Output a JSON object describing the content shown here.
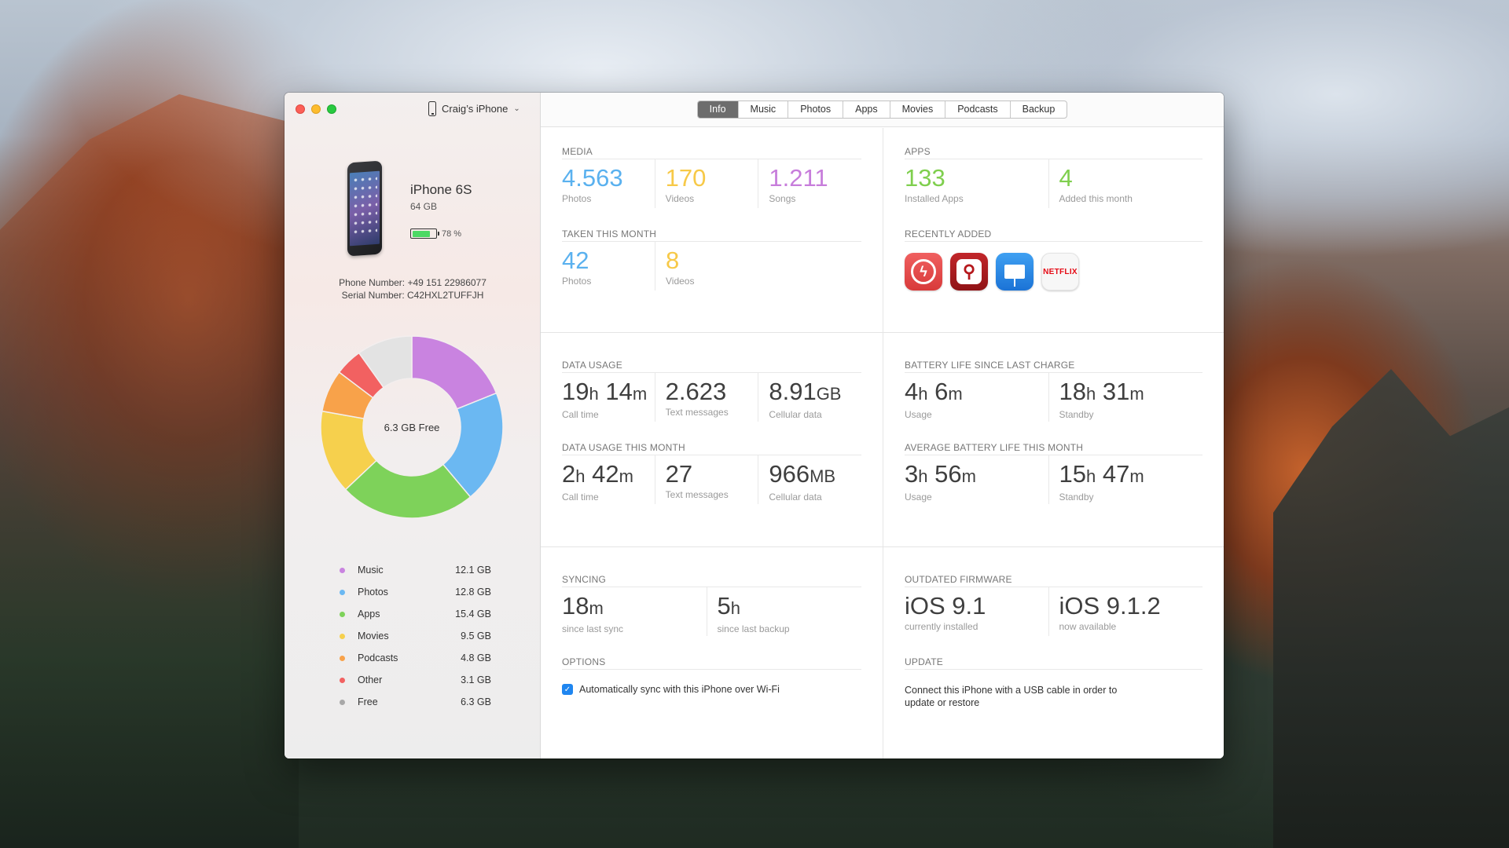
{
  "device_picker": {
    "name": "Craig’s iPhone"
  },
  "device": {
    "model": "iPhone 6S",
    "capacity": "64 GB",
    "battery_pct": "78 %",
    "battery_level": 0.78,
    "phone_number": "Phone Number: +49 151 22986077",
    "serial_number": "Serial Number: C42HXL2TUFFJH"
  },
  "storage": {
    "center_label": "6.3 GB Free",
    "segments": [
      {
        "name": "Music",
        "size": "12.1 GB",
        "value": 12.1,
        "color": "#c983e0"
      },
      {
        "name": "Photos",
        "size": "12.8 GB",
        "value": 12.8,
        "color": "#6bb8f2"
      },
      {
        "name": "Apps",
        "size": "15.4 GB",
        "value": 15.4,
        "color": "#7ed25a"
      },
      {
        "name": "Movies",
        "size": "9.5 GB",
        "value": 9.5,
        "color": "#f6d04d"
      },
      {
        "name": "Podcasts",
        "size": "4.8 GB",
        "value": 4.8,
        "color": "#f8a24a"
      },
      {
        "name": "Other",
        "size": "3.1 GB",
        "value": 3.1,
        "color": "#f26161"
      },
      {
        "name": "Free",
        "size": "6.3 GB",
        "value": 6.3,
        "color": "#e3e3e3"
      }
    ]
  },
  "tabs": [
    "Info",
    "Music",
    "Photos",
    "Apps",
    "Movies",
    "Podcasts",
    "Backup"
  ],
  "active_tab": "Info",
  "media": {
    "label": "MEDIA",
    "stats": [
      {
        "value": "4.563",
        "caption": "Photos",
        "color": "#5ab1ef"
      },
      {
        "value": "170",
        "caption": "Videos",
        "color": "#f7c948"
      },
      {
        "value": "1.211",
        "caption": "Songs",
        "color": "#c77ddb"
      }
    ],
    "month_label": "TAKEN THIS MONTH",
    "month_stats": [
      {
        "value": "42",
        "caption": "Photos"
      },
      {
        "value": "8",
        "caption": "Videos"
      }
    ]
  },
  "apps": {
    "label": "APPS",
    "stats": [
      {
        "value": "133",
        "caption": "Installed Apps"
      },
      {
        "value": "4",
        "caption": "Added this month"
      }
    ],
    "recent_label": "RECENTLY ADDED",
    "recent_icons": [
      "reeder-icon",
      "acrobat-icon",
      "keynote-icon",
      "netflix-icon"
    ],
    "netflix_text": "NETFLIX"
  },
  "data_usage": {
    "label": "DATA USAGE",
    "call_h": "19",
    "call_h_unit": "h",
    "call_m": " 14",
    "call_m_unit": "m",
    "call_caption": "Call time",
    "texts": "2.623",
    "texts_caption": "Text messages",
    "cell": "8.91",
    "cell_unit": "GB",
    "cell_caption": "Cellular data",
    "month_label": "DATA USAGE THIS MONTH",
    "m_call_h": "2",
    "m_call_h_unit": "h",
    "m_call_m": " 42",
    "m_call_m_unit": "m",
    "m_call_caption": "Call time",
    "m_texts": "27",
    "m_texts_caption": "Text messages",
    "m_cell": "966",
    "m_cell_unit": "MB",
    "m_cell_caption": "Cellular data"
  },
  "battery": {
    "label": "BATTERY LIFE SINCE LAST CHARGE",
    "usage_h": "4",
    "usage_h_unit": "h",
    "usage_m": " 6",
    "usage_m_unit": "m",
    "usage_caption": "Usage",
    "standby_h": "18",
    "standby_h_unit": "h",
    "standby_m": " 31",
    "standby_m_unit": "m",
    "standby_caption": "Standby",
    "avg_label": "AVERAGE BATTERY LIFE THIS MONTH",
    "avg_usage_h": "3",
    "avg_usage_h_unit": "h",
    "avg_usage_m": " 56",
    "avg_usage_m_unit": "m",
    "avg_usage_caption": "Usage",
    "avg_standby_h": "15",
    "avg_standby_h_unit": "h",
    "avg_standby_m": " 47",
    "avg_standby_m_unit": "m",
    "avg_standby_caption": "Standby"
  },
  "syncing": {
    "label": "SYNCING",
    "last_sync": "18",
    "last_sync_unit": "m",
    "last_sync_caption": "since last sync",
    "last_backup": "5",
    "last_backup_unit": "h",
    "last_backup_caption": "since last backup",
    "options_label": "OPTIONS",
    "wifi_sync_label": "Automatically sync with this iPhone over Wi-Fi",
    "wifi_sync_checked": true
  },
  "firmware": {
    "label": "OUTDATED FIRMWARE",
    "installed": "iOS 9.1",
    "installed_caption": "currently installed",
    "available": "iOS 9.1.2",
    "available_caption": "now available",
    "update_label": "UPDATE",
    "update_text": "Connect this iPhone with a USB cable in order to update or restore"
  }
}
